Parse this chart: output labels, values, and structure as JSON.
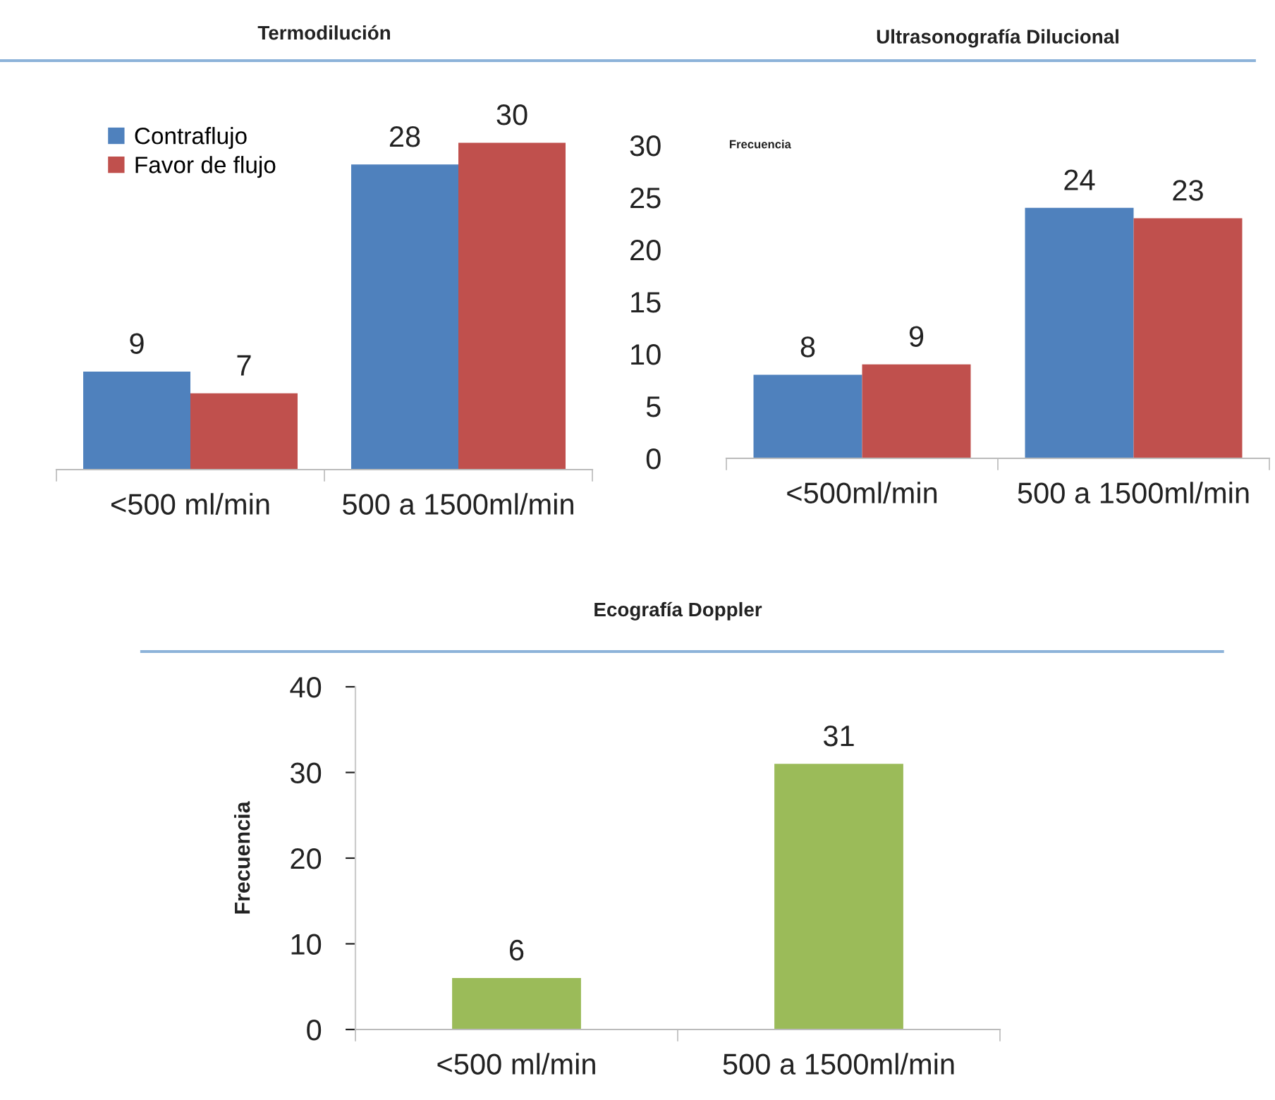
{
  "chart_data": [
    {
      "type": "bar",
      "title": "Termodilución",
      "categories": [
        "<500 ml/min",
        "500 a 1500ml/min"
      ],
      "series": [
        {
          "name": "Contraflujo",
          "color": "#4f81bd",
          "values": [
            9,
            28
          ]
        },
        {
          "name": "Favor de flujo",
          "color": "#c0504d",
          "values": [
            7,
            30
          ]
        }
      ],
      "data_labels": true,
      "legend": "top left",
      "grid": false,
      "tick_labels": "x"
    },
    {
      "type": "bar",
      "title": "Ultrasonografía Dilucional",
      "ylabel": "Frecuencia",
      "categories": [
        "<500ml/min",
        "500 a 1500ml/min"
      ],
      "series": [
        {
          "color": "#4f81bd",
          "values": [
            8,
            24
          ]
        },
        {
          "color": "#c0504d",
          "values": [
            9,
            23
          ]
        }
      ],
      "ylim": [
        0,
        30
      ],
      "yticks": [
        0,
        5,
        10,
        15,
        20,
        25,
        30
      ],
      "data_labels": true,
      "legend": false,
      "grid": false
    },
    {
      "type": "bar",
      "title": "Ecografía Doppler",
      "ylabel": "Frecuencia",
      "categories": [
        "<500 ml/min",
        "500 a 1500ml/min"
      ],
      "series": [
        {
          "color": "#9bbb59",
          "values": [
            6,
            31
          ]
        }
      ],
      "ylim": [
        0,
        40
      ],
      "yticks": [
        0,
        10,
        20,
        30,
        40
      ],
      "data_labels": true,
      "legend": false,
      "grid": false
    }
  ]
}
